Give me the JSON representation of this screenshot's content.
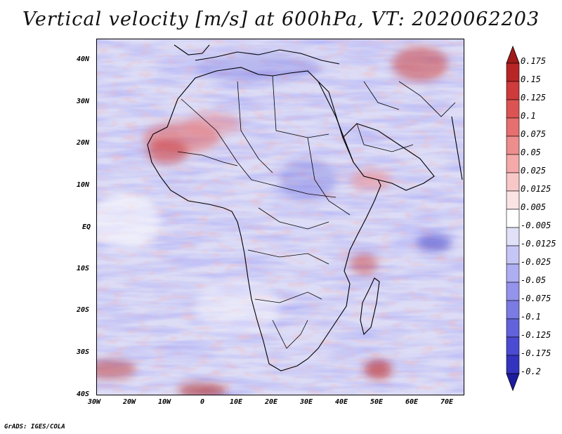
{
  "title": "Vertical velocity [m/s] at 600hPa, VT: 2020062203",
  "credit": "GrADS: IGES/COLA",
  "map": {
    "lat_labels": [
      "40N",
      "30N",
      "20N",
      "10N",
      "EQ",
      "10S",
      "20S",
      "30S",
      "40S"
    ],
    "lon_labels": [
      "30W",
      "20W",
      "10W",
      "0",
      "10E",
      "20E",
      "30E",
      "40E",
      "50E",
      "60E",
      "70E"
    ],
    "lat_range": [
      -40,
      45
    ],
    "lon_range": [
      -30,
      75
    ]
  },
  "colorbar": {
    "levels": [
      "0.175",
      "0.15",
      "0.125",
      "0.1",
      "0.075",
      "0.05",
      "0.025",
      "0.0125",
      "0.005",
      "-0.005",
      "-0.0125",
      "-0.025",
      "-0.05",
      "-0.075",
      "-0.1",
      "-0.125",
      "-0.175",
      "-0.2"
    ],
    "colors": [
      "#a11a1a",
      "#b82525",
      "#cf3a3a",
      "#dc5353",
      "#e66f6f",
      "#ee8d8d",
      "#f4aaaa",
      "#f8c8c8",
      "#fbe3e3",
      "#ffffff",
      "#e0e0f8",
      "#c6c6f6",
      "#aeaef2",
      "#9494ec",
      "#7b7be4",
      "#6262dc",
      "#4a4ad2",
      "#3333c0",
      "#1c1ca0"
    ],
    "top_arrow_color": "#a11a1a",
    "bottom_arrow_color": "#1c1ca0"
  }
}
